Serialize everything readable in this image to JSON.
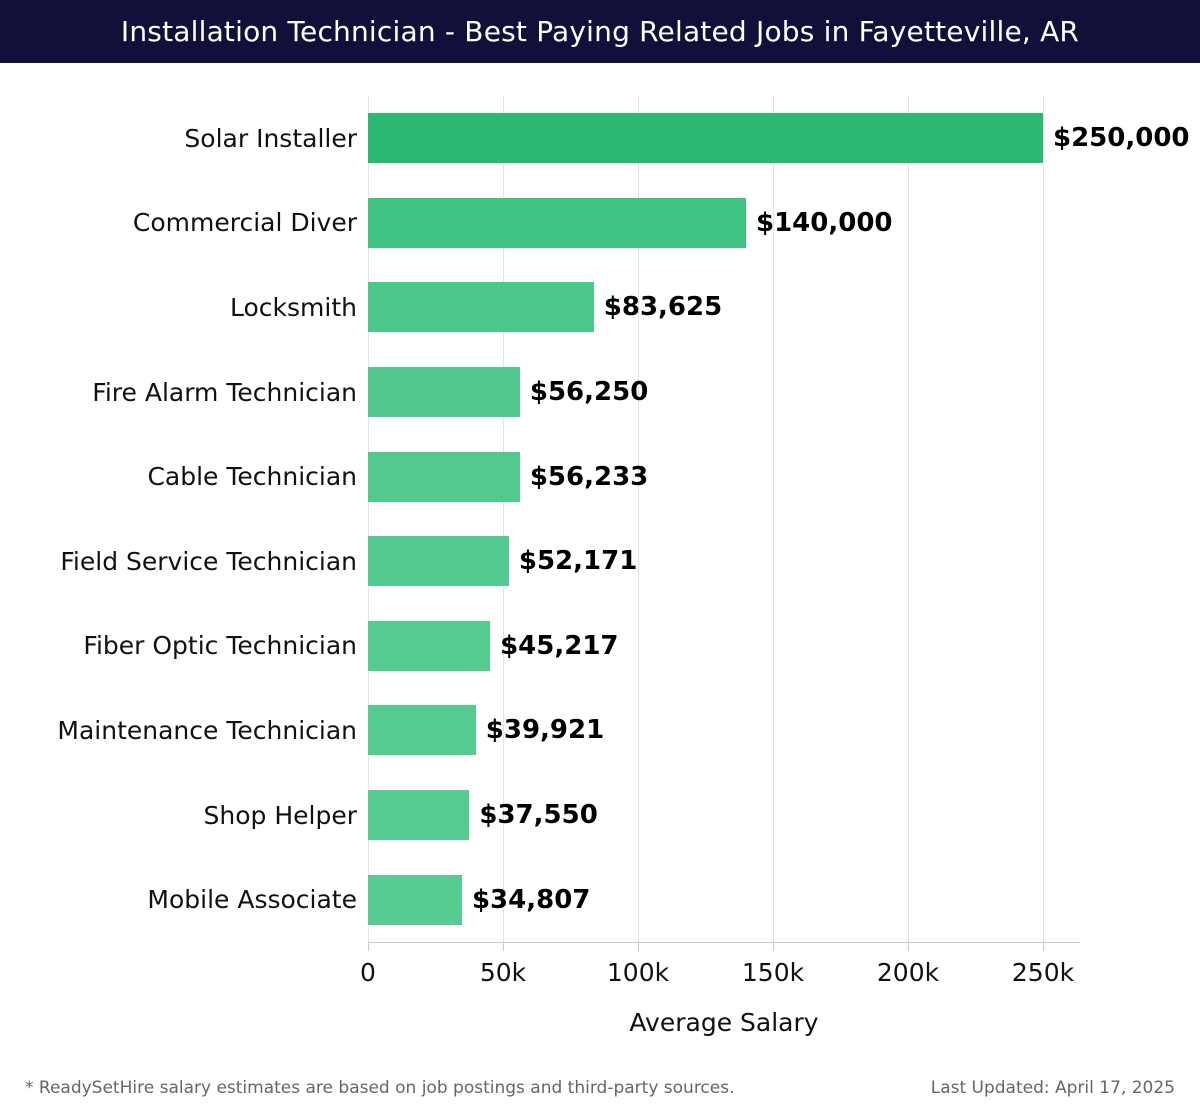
{
  "header": {
    "title": "Installation Technician - Best Paying Related Jobs in Fayetteville, AR",
    "background": "#10103a",
    "text_color": "#ffffff"
  },
  "chart_data": {
    "type": "bar",
    "orientation": "horizontal",
    "title": "Installation Technician - Best Paying Related Jobs in Fayetteville, AR",
    "categories": [
      "Solar Installer",
      "Commercial Diver",
      "Locksmith",
      "Fire Alarm Technician",
      "Cable Technician",
      "Field Service Technician",
      "Fiber Optic Technician",
      "Maintenance Technician",
      "Shop Helper",
      "Mobile Associate"
    ],
    "values": [
      250000,
      140000,
      83625,
      56250,
      56233,
      52171,
      45217,
      39921,
      37550,
      34807
    ],
    "value_labels": [
      "$250,000",
      "$140,000",
      "$83,625",
      "$56,250",
      "$56,233",
      "$52,171",
      "$45,217",
      "$39,921",
      "$37,550",
      "$34,807"
    ],
    "bar_colors": [
      "#2bb873",
      "#41c384",
      "#4cc88b",
      "#51c98d",
      "#52ca8e",
      "#53ca8f",
      "#55cb90",
      "#56cb91",
      "#57cc92",
      "#58cc93"
    ],
    "xlabel": "Average Salary",
    "ylabel": "",
    "x_ticks": [
      {
        "value": 0,
        "label": "0"
      },
      {
        "value": 50000,
        "label": "50k"
      },
      {
        "value": 100000,
        "label": "100k"
      },
      {
        "value": 150000,
        "label": "150k"
      },
      {
        "value": 200000,
        "label": "200k"
      },
      {
        "value": 250000,
        "label": "250k"
      }
    ],
    "xlim": [
      0,
      263700
    ],
    "grid": "vertical",
    "gridline_color": "#e3e3e3",
    "axis_line_color": "#cccccc",
    "legend": "none"
  },
  "footer": {
    "left": "* ReadySetHire salary estimates are based on job postings and third-party sources.",
    "right": "Last Updated: April 17, 2025"
  }
}
